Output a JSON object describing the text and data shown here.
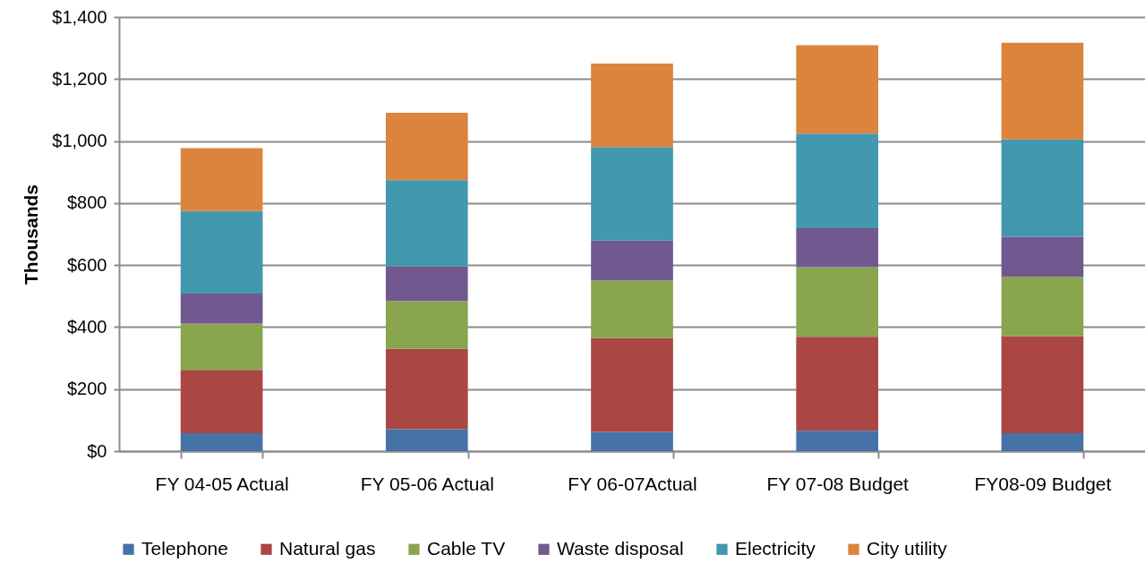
{
  "chart_data": {
    "type": "bar",
    "stacked": true,
    "ylabel": "Thousands",
    "categories": [
      "FY 04-05 Actual",
      "FY 05-06 Actual",
      "FY 06-07Actual",
      "FY 07-08 Budget",
      "FY08-09 Budget"
    ],
    "series": [
      {
        "name": "Telephone",
        "color": "#4572a7",
        "values": [
          58,
          71,
          62,
          66,
          58
        ]
      },
      {
        "name": "Natural gas",
        "color": "#aa4643",
        "values": [
          204,
          259,
          303,
          303,
          313
        ]
      },
      {
        "name": "Cable TV",
        "color": "#89a54e",
        "values": [
          149,
          154,
          185,
          224,
          191
        ]
      },
      {
        "name": "Waste disposal",
        "color": "#71588f",
        "values": [
          97,
          112,
          129,
          126,
          129
        ]
      },
      {
        "name": "Electricity",
        "color": "#4198af",
        "values": [
          266,
          278,
          302,
          305,
          314
        ]
      },
      {
        "name": "City utility",
        "color": "#db843d",
        "values": [
          203,
          217,
          269,
          285,
          312
        ]
      }
    ],
    "ylim": [
      0,
      1400
    ],
    "yticks": [
      {
        "value": 0,
        "label": "$0"
      },
      {
        "value": 200,
        "label": "$200"
      },
      {
        "value": 400,
        "label": "$400"
      },
      {
        "value": 600,
        "label": "$600"
      },
      {
        "value": 800,
        "label": "$800"
      },
      {
        "value": 1000,
        "label": "$1,000"
      },
      {
        "value": 1200,
        "label": "$1,200"
      },
      {
        "value": 1400,
        "label": "$1,400"
      }
    ],
    "grid": "y",
    "legend": "bottom"
  }
}
